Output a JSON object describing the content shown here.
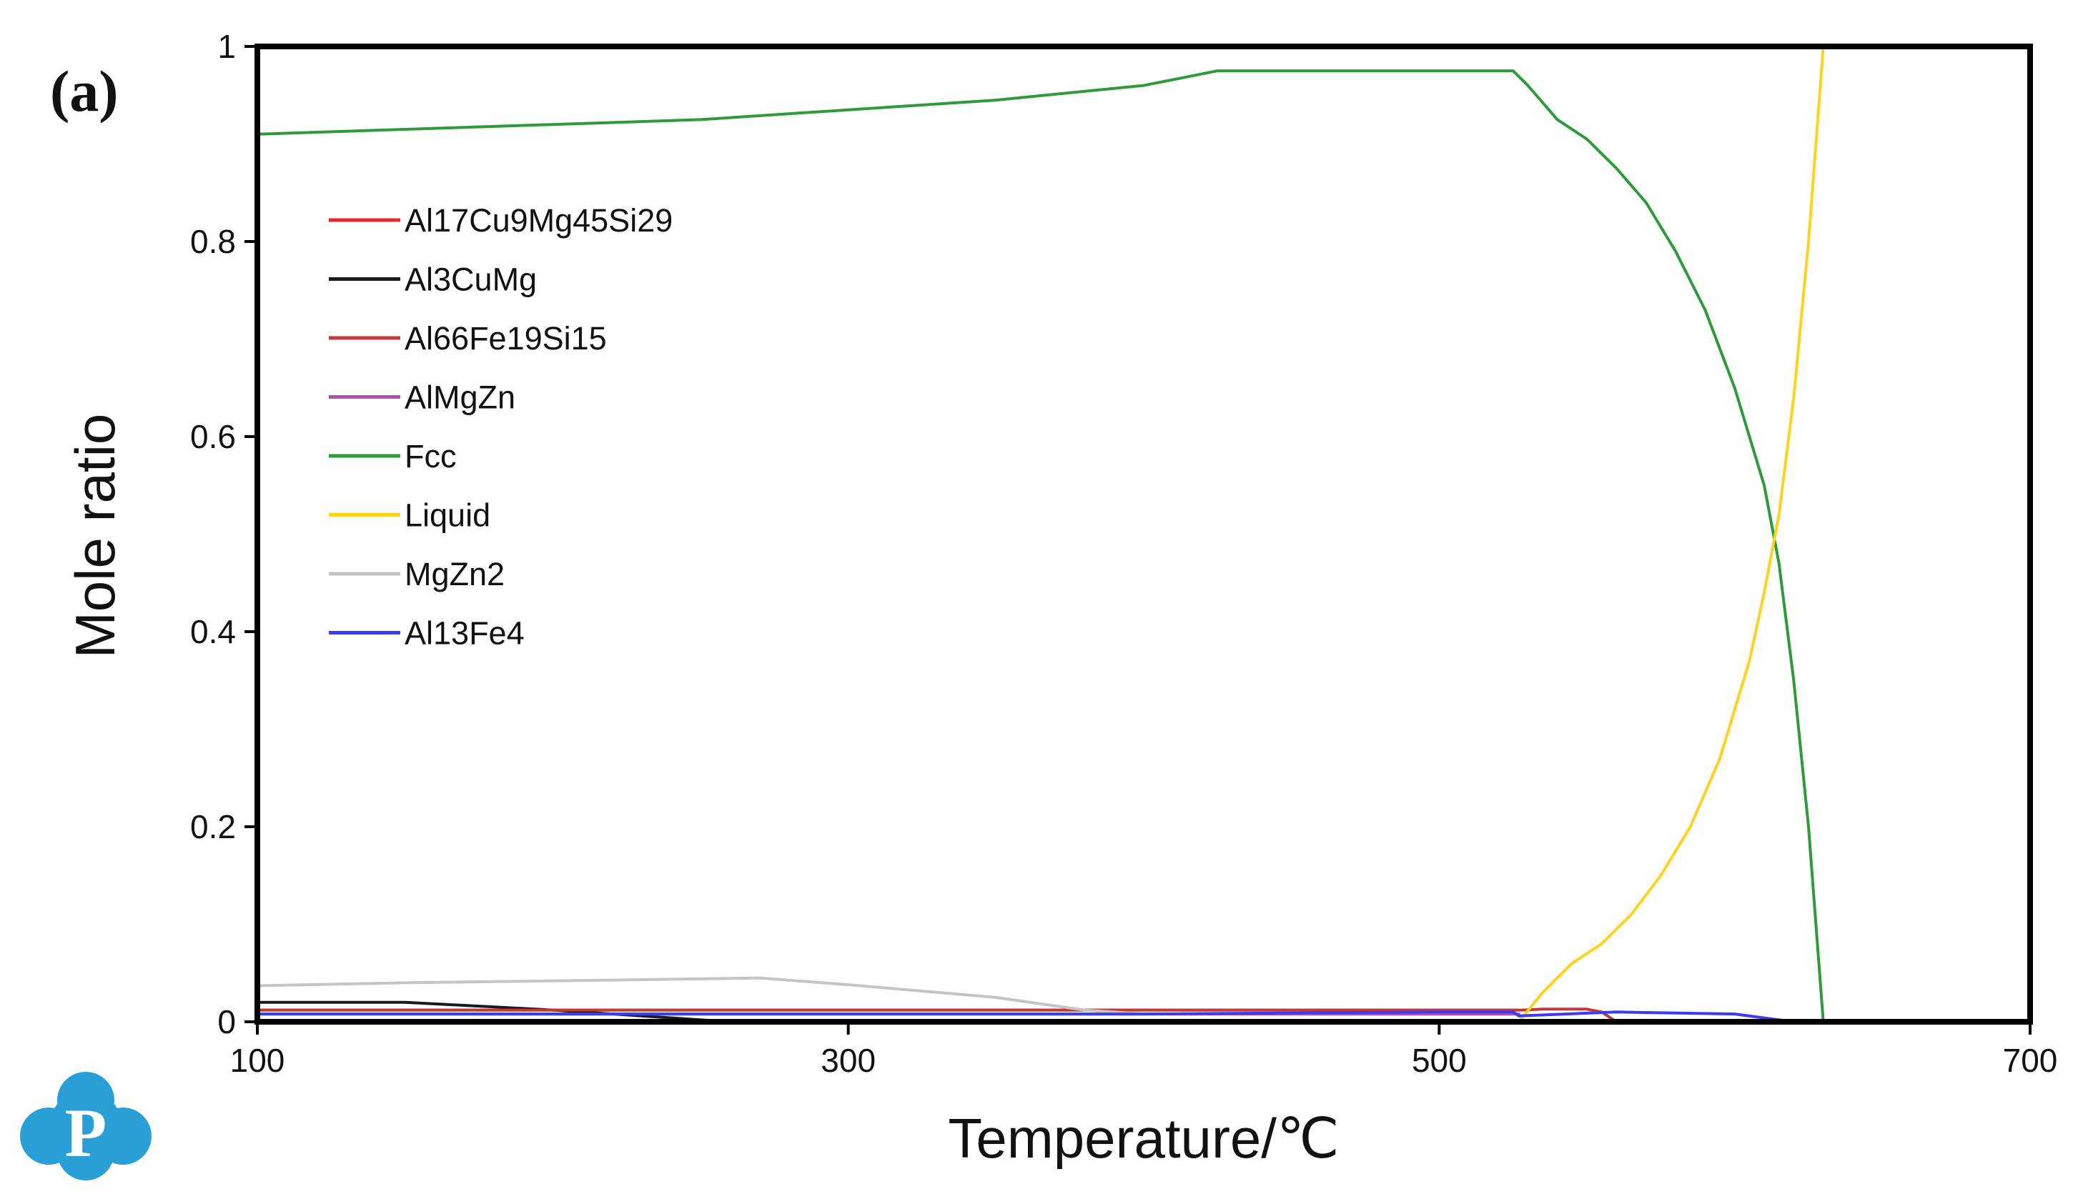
{
  "panel_label": "(a)",
  "colors": {
    "Al17Cu9Mg45Si29": "#e8262b",
    "Al3CuMg": "#1a1a1a",
    "Al66Fe19Si15": "#c0393b",
    "AlMgZn": "#b04ab8",
    "Fcc": "#2f9a3a",
    "Liquid": "#ffd21f",
    "MgZn2": "#c4c4c4",
    "Al13Fe4": "#3b3bf0",
    "logo": "#2a9fd6"
  },
  "logo_icon": "p-logo-icon",
  "chart_data": {
    "type": "line",
    "xlabel": "Temperature/℃",
    "ylabel": "Mole ratio",
    "xlim": [
      100,
      700
    ],
    "ylim": [
      0,
      1
    ],
    "xticks": [
      100,
      300,
      500,
      700
    ],
    "yticks": [
      0,
      0.2,
      0.4,
      0.6,
      0.8,
      1
    ],
    "ytick_labels": [
      "0",
      "0.2",
      "0.4",
      "0.6",
      "0.8",
      "1"
    ],
    "legend_position": "upper-left",
    "grid": false,
    "series": [
      {
        "name": "Al17Cu9Mg45Si29",
        "x": [
          100,
          150,
          200,
          250,
          300,
          350,
          400,
          450,
          500,
          527
        ],
        "y": [
          0.012,
          0.012,
          0.012,
          0.012,
          0.012,
          0.012,
          0.012,
          0.012,
          0.012,
          0.012
        ]
      },
      {
        "name": "Al3CuMg",
        "x": [
          100,
          150,
          200,
          240,
          260
        ],
        "y": [
          0.02,
          0.02,
          0.012,
          0.004,
          0
        ]
      },
      {
        "name": "Al66Fe19Si15",
        "x": [
          100,
          200,
          300,
          400,
          500,
          528,
          535,
          550,
          555,
          560
        ],
        "y": [
          0.012,
          0.012,
          0.012,
          0.012,
          0.012,
          0.012,
          0.013,
          0.013,
          0.01,
          0
        ]
      },
      {
        "name": "AlMgZn",
        "x": [
          100,
          200,
          300,
          400,
          500,
          527
        ],
        "y": [
          0.008,
          0.008,
          0.008,
          0.008,
          0.008,
          0.008
        ]
      },
      {
        "name": "Fcc",
        "x": [
          100,
          150,
          200,
          250,
          300,
          350,
          400,
          425,
          450,
          500,
          525,
          530,
          540,
          550,
          560,
          570,
          580,
          590,
          600,
          610,
          615,
          620,
          625,
          630
        ],
        "y": [
          0.91,
          0.915,
          0.92,
          0.925,
          0.935,
          0.945,
          0.96,
          0.975,
          0.975,
          0.975,
          0.975,
          0.96,
          0.925,
          0.905,
          0.875,
          0.84,
          0.79,
          0.73,
          0.65,
          0.55,
          0.47,
          0.35,
          0.2,
          0
        ]
      },
      {
        "name": "Liquid",
        "x": [
          527,
          535,
          545,
          555,
          565,
          575,
          585,
          595,
          605,
          610,
          615,
          620,
          625,
          630
        ],
        "y": [
          0,
          0.03,
          0.06,
          0.08,
          0.11,
          0.15,
          0.2,
          0.27,
          0.37,
          0.44,
          0.52,
          0.64,
          0.8,
          1.0
        ]
      },
      {
        "name": "MgZn2",
        "x": [
          100,
          150,
          200,
          250,
          270,
          300,
          350,
          380,
          400
        ],
        "y": [
          0.037,
          0.04,
          0.042,
          0.044,
          0.045,
          0.038,
          0.025,
          0.012,
          0.008
        ]
      },
      {
        "name": "Al13Fe4",
        "x": [
          100,
          200,
          300,
          400,
          500,
          525,
          527,
          560,
          600,
          620
        ],
        "y": [
          0.008,
          0.008,
          0.008,
          0.008,
          0.01,
          0.01,
          0.006,
          0.01,
          0.008,
          0
        ]
      }
    ]
  }
}
